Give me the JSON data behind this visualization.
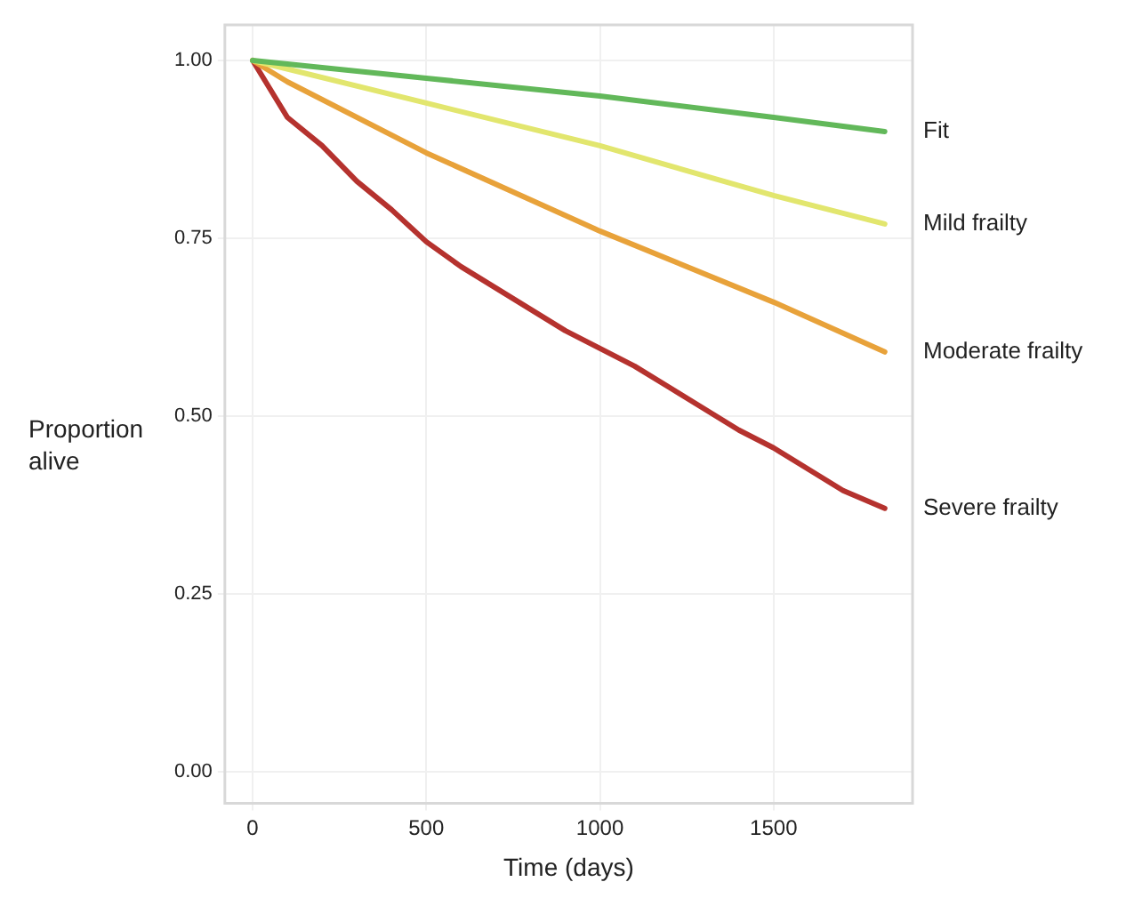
{
  "chart_data": {
    "type": "line",
    "xlabel": "Time (days)",
    "ylabel": "Proportion alive",
    "xlim": [
      -80,
      1900
    ],
    "ylim": [
      -0.045,
      1.05
    ],
    "xticks": [
      0,
      500,
      1000,
      1500
    ],
    "yticks": [
      {
        "value": 0,
        "label": "0.00"
      },
      {
        "value": 0.25,
        "label": "0.25"
      },
      {
        "value": 0.5,
        "label": "0.50"
      },
      {
        "value": 0.75,
        "label": "0.75"
      },
      {
        "value": 1,
        "label": "1.00"
      }
    ],
    "grid": true,
    "legend": false,
    "marker": "none",
    "line_style": "solid",
    "series": [
      {
        "name": "Fit",
        "color": "#62b85a",
        "x": [
          0,
          500,
          1000,
          1500,
          1820
        ],
        "values": [
          1,
          0.975,
          0.95,
          0.92,
          0.9
        ]
      },
      {
        "name": "Mild frailty",
        "color": "#e2e66e",
        "x": [
          0,
          500,
          1000,
          1500,
          1820
        ],
        "values": [
          1,
          0.94,
          0.88,
          0.81,
          0.77
        ]
      },
      {
        "name": "Moderate frailty",
        "color": "#e8a23a",
        "x": [
          0,
          100,
          500,
          1000,
          1500,
          1820
        ],
        "values": [
          1,
          0.97,
          0.87,
          0.76,
          0.66,
          0.59
        ]
      },
      {
        "name": "Severe frailty",
        "color": "#b5322e",
        "x": [
          0,
          50,
          100,
          200,
          300,
          400,
          500,
          600,
          700,
          800,
          900,
          1000,
          1100,
          1200,
          1300,
          1400,
          1500,
          1600,
          1700,
          1820
        ],
        "values": [
          1,
          0.96,
          0.92,
          0.88,
          0.83,
          0.79,
          0.745,
          0.71,
          0.68,
          0.65,
          0.62,
          0.595,
          0.57,
          0.54,
          0.51,
          0.48,
          0.455,
          0.425,
          0.395,
          0.37
        ]
      }
    ]
  }
}
